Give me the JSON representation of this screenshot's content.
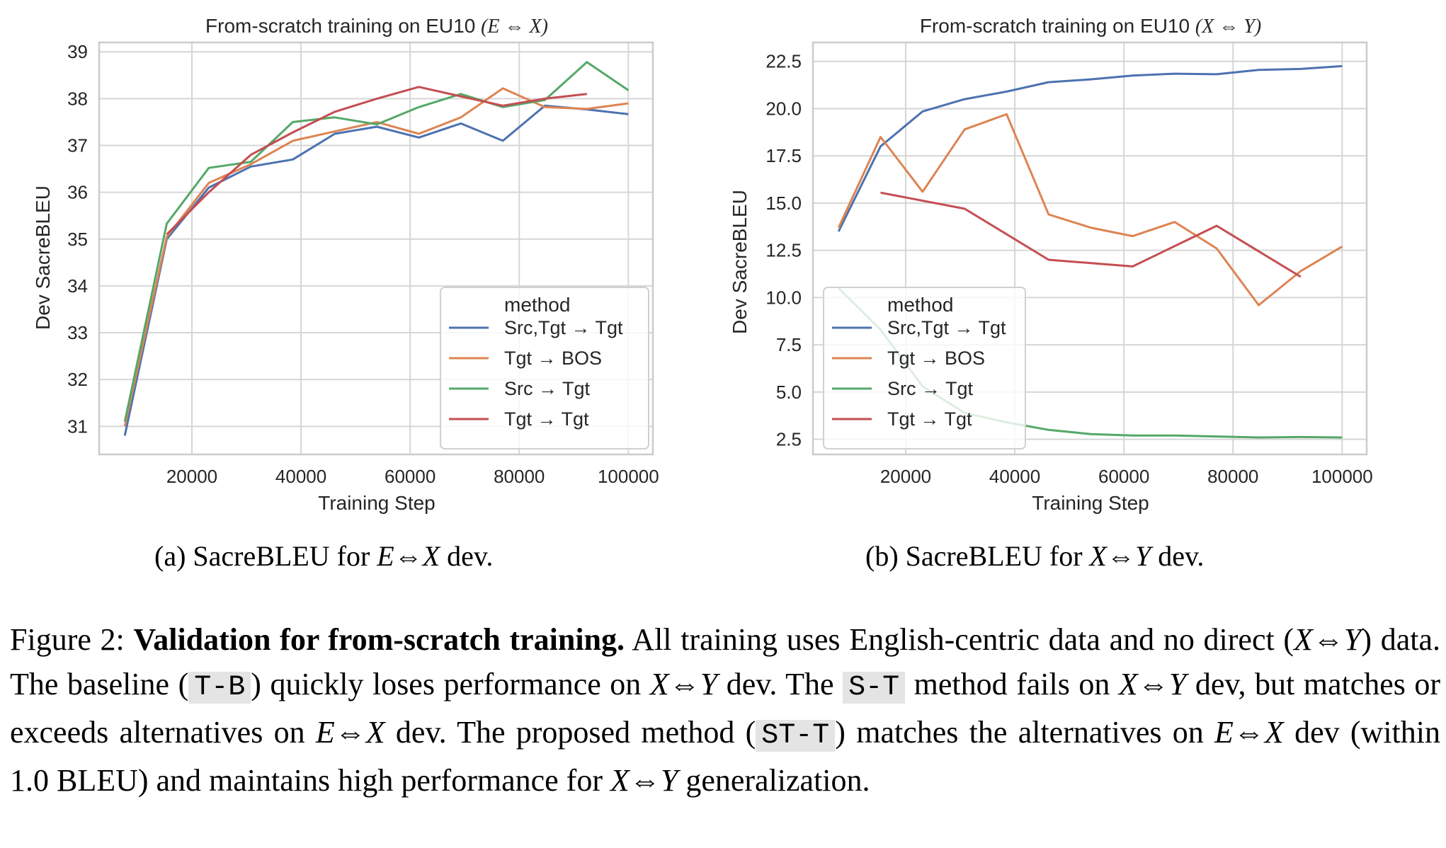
{
  "chart_data": [
    {
      "type": "line",
      "title": "From-scratch training on EU10",
      "title_math": "(E ⇔ X)",
      "xlabel": "Training Step",
      "ylabel": "Dev SacreBLEU",
      "xlim": [
        3000,
        104500
      ],
      "ylim": [
        30.4,
        39.2
      ],
      "xticks": [
        20000,
        40000,
        60000,
        80000,
        100000
      ],
      "xtick_labels": [
        "20000",
        "40000",
        "60000",
        "80000",
        "100000"
      ],
      "yticks": [
        31,
        32,
        33,
        34,
        35,
        36,
        37,
        38,
        39
      ],
      "ytick_labels": [
        "31",
        "32",
        "33",
        "34",
        "35",
        "36",
        "37",
        "38",
        "39"
      ],
      "grid": true,
      "legend_title": "method",
      "legend_placement": "lower-right",
      "series": [
        {
          "name": "Src,Tgt → Tgt",
          "color": "#4c72b0",
          "x": [
            7700,
            15400,
            23100,
            30800,
            38500,
            46200,
            53900,
            61600,
            69300,
            77000,
            84700,
            92400,
            100000
          ],
          "y": [
            30.8,
            35.0,
            36.1,
            36.55,
            36.7,
            37.25,
            37.4,
            37.17,
            37.47,
            37.1,
            37.85,
            37.77,
            37.67
          ]
        },
        {
          "name": "Tgt → BOS",
          "color": "#dd8452",
          "x": [
            7700,
            15400,
            23100,
            30800,
            38500,
            46200,
            53900,
            61600,
            69300,
            77000,
            84700,
            92400,
            100000
          ],
          "y": [
            31.0,
            35.05,
            36.2,
            36.6,
            37.1,
            37.3,
            37.5,
            37.25,
            37.6,
            38.22,
            37.82,
            37.78,
            37.9
          ]
        },
        {
          "name": "Src → Tgt",
          "color": "#55a868",
          "x": [
            7700,
            15400,
            23100,
            30800,
            38500,
            46200,
            53900,
            61600,
            69300,
            77000,
            84700,
            92400,
            100000
          ],
          "y": [
            31.1,
            35.33,
            36.52,
            36.65,
            37.5,
            37.6,
            37.45,
            37.82,
            38.1,
            37.82,
            37.97,
            38.78,
            38.18
          ]
        },
        {
          "name": "Tgt → Tgt",
          "color": "#c44e52",
          "x": [
            15400,
            23100,
            30800,
            38500,
            46200,
            53900,
            61600,
            69300,
            77000,
            84700,
            92400
          ],
          "y": [
            35.1,
            36.0,
            36.8,
            37.28,
            37.72,
            38.0,
            38.25,
            38.05,
            37.85,
            38.0,
            38.1
          ]
        }
      ]
    },
    {
      "type": "line",
      "title": "From-scratch training on EU10",
      "title_math": "(X ⇔ Y)",
      "xlabel": "Training Step",
      "ylabel": "Dev SacreBLEU",
      "xlim": [
        3000,
        104500
      ],
      "ylim": [
        1.7,
        23.5
      ],
      "xticks": [
        20000,
        40000,
        60000,
        80000,
        100000
      ],
      "xtick_labels": [
        "20000",
        "40000",
        "60000",
        "80000",
        "100000"
      ],
      "yticks": [
        2.5,
        5.0,
        7.5,
        10.0,
        12.5,
        15.0,
        17.5,
        20.0,
        22.5
      ],
      "ytick_labels": [
        "2.5",
        "5.0",
        "7.5",
        "10.0",
        "12.5",
        "15.0",
        "17.5",
        "20.0",
        "22.5"
      ],
      "grid": true,
      "legend_title": "method",
      "legend_placement": "lower-left",
      "series": [
        {
          "name": "Src,Tgt → Tgt",
          "color": "#4c72b0",
          "x": [
            7700,
            15400,
            23100,
            30800,
            38500,
            46200,
            53900,
            61600,
            69300,
            77000,
            84700,
            92400,
            100000
          ],
          "y": [
            13.5,
            18.0,
            19.85,
            20.5,
            20.9,
            21.4,
            21.55,
            21.75,
            21.85,
            21.82,
            22.05,
            22.1,
            22.25
          ]
        },
        {
          "name": "Tgt → BOS",
          "color": "#dd8452",
          "x": [
            7700,
            15400,
            23100,
            30800,
            38500,
            46200,
            53900,
            61600,
            69300,
            77000,
            84700,
            92400,
            100000
          ],
          "y": [
            13.7,
            18.5,
            15.6,
            18.9,
            19.7,
            14.4,
            13.7,
            13.25,
            14.0,
            12.6,
            9.6,
            11.4,
            12.7
          ]
        },
        {
          "name": "Src → Tgt",
          "color": "#55a868",
          "x": [
            7700,
            15400,
            23100,
            30800,
            38500,
            46200,
            53900,
            61600,
            69300,
            77000,
            84700,
            92400,
            100000
          ],
          "y": [
            10.5,
            8.3,
            5.3,
            3.9,
            3.4,
            3.0,
            2.78,
            2.7,
            2.7,
            2.65,
            2.6,
            2.62,
            2.6
          ]
        },
        {
          "name": "Tgt → Tgt",
          "color": "#c44e52",
          "x": [
            15400,
            30800,
            46200,
            61600,
            77000,
            92400
          ],
          "y": [
            15.55,
            14.7,
            12.0,
            11.65,
            13.8,
            11.1
          ]
        }
      ]
    }
  ],
  "subcaptions": [
    {
      "label": "(a) SacreBLEU for",
      "math": "E⇔X",
      "suffix": "dev."
    },
    {
      "label": "(b) SacreBLEU for",
      "math": "X⇔Y",
      "suffix": "dev."
    }
  ],
  "caption": {
    "prefix": "Figure 2:",
    "bold": "Validation for from-scratch training.",
    "t1": "All training uses English-centric data and no direct (",
    "m1": "X⇔Y",
    "t2": ") data. The baseline (",
    "c1": "T-B",
    "t3": ") quickly loses performance on",
    "m2": "X⇔Y",
    "t4": "dev. The",
    "c2": "S-T",
    "t5": "method fails on",
    "m3": "X⇔Y",
    "t6": "dev, but matches or exceeds alternatives on",
    "m4": "E⇔X",
    "t7": "dev. The proposed method (",
    "c3": "ST-T",
    "t8": ") matches the alternatives on",
    "m5": "E⇔X",
    "t9": "dev (within 1.0 BLEU) and maintains high performance for",
    "m6": "X⇔Y",
    "t10": "generalization."
  }
}
